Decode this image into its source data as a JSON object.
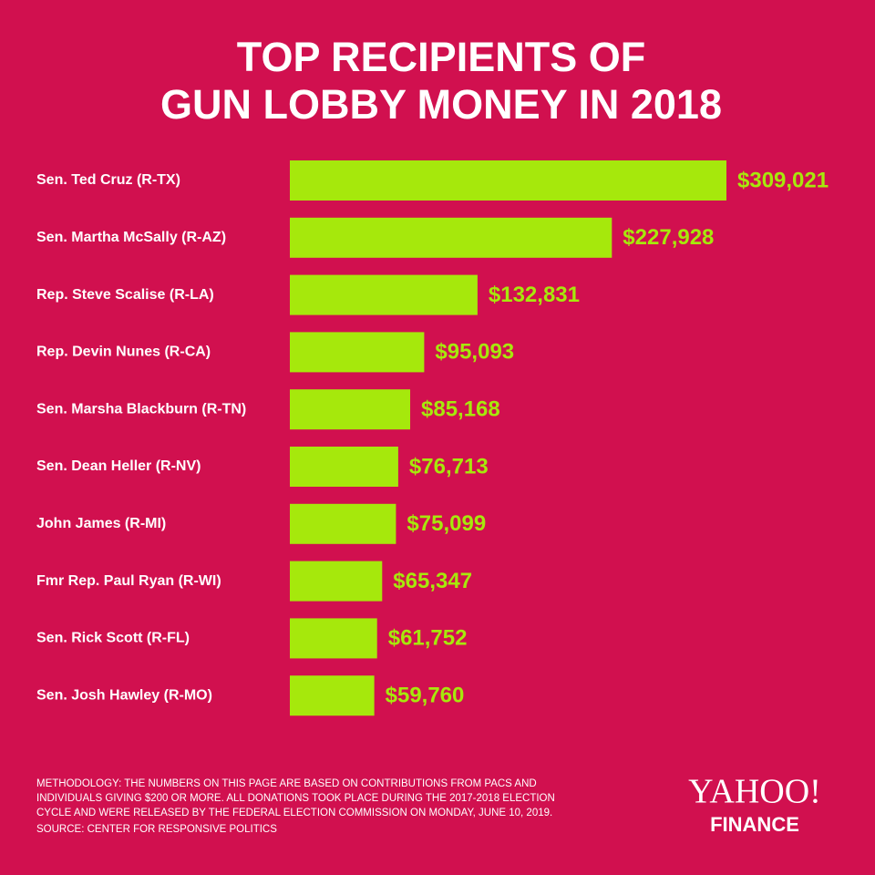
{
  "chart_data": {
    "type": "bar",
    "orientation": "horizontal",
    "title": [
      "TOP RECIPIENTS OF",
      "GUN LOBBY MONEY IN 2018"
    ],
    "categories": [
      "Sen. Ted Cruz (R-TX)",
      "Sen. Martha McSally (R-AZ)",
      "Rep. Steve Scalise (R-LA)",
      "Rep. Devin Nunes (R-CA)",
      "Sen. Marsha Blackburn (R-TN)",
      "Sen. Dean Heller (R-NV)",
      "John James (R-MI)",
      "Fmr Rep. Paul Ryan (R-WI)",
      "Sen. Rick Scott (R-FL)",
      "Sen. Josh Hawley (R-MO)"
    ],
    "values": [
      309021,
      227928,
      132831,
      95093,
      85168,
      76713,
      75099,
      65347,
      61752,
      59760
    ],
    "value_labels": [
      "$309,021",
      "$227,928",
      "$132,831",
      "$95,093",
      "$85,168",
      "$76,713",
      "$75,099",
      "$65,347",
      "$61,752",
      "$59,760"
    ],
    "color": "#a6e80c",
    "footnote": [
      "METHODOLOGY: THE NUMBERS ON THIS PAGE ARE BASED ON CONTRIBUTIONS FROM PACS AND",
      "INDIVIDUALS GIVING $200 OR MORE. ALL DONATIONS TOOK PLACE DURING THE 2017-2018 ELECTION",
      "CYCLE AND WERE RELEASED BY THE FEDERAL ELECTION COMMISSION ON MONDAY, JUNE 10, 2019.",
      "SOURCE: CENTER FOR RESPONSIVE POLITICS"
    ],
    "logo": [
      "YAHOO!",
      "FINANCE"
    ]
  }
}
